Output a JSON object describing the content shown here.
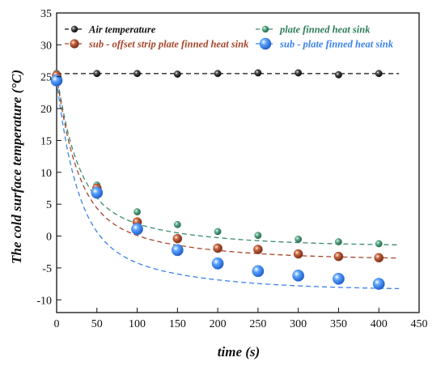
{
  "chart_data": {
    "type": "scatter",
    "xlabel": "time (s)",
    "ylabel": "The cold surface temperature (°C)",
    "xlim": [
      0,
      450
    ],
    "ylim": [
      -12,
      35
    ],
    "x_ticks": [
      0,
      50,
      100,
      150,
      200,
      250,
      300,
      350,
      400,
      450
    ],
    "x_tick_labels": [
      "0",
      "50",
      "100",
      "150",
      "200",
      "250",
      "300",
      "350",
      "400",
      "450"
    ],
    "y_ticks": [
      -10,
      -5,
      0,
      5,
      10,
      15,
      20,
      25,
      30,
      35
    ],
    "y_tick_labels": [
      "-10",
      "-5",
      "0",
      "5",
      "10",
      "15",
      "20",
      "25",
      "30",
      "35"
    ],
    "grid": false,
    "legend_position": "top",
    "series": [
      {
        "name": "Air temperature",
        "color": "#111111",
        "legend_text_color": "#111111",
        "marker_size": "small",
        "x": [
          0,
          50,
          100,
          150,
          200,
          250,
          300,
          350,
          400
        ],
        "y": [
          25.5,
          25.5,
          25.5,
          25.4,
          25.5,
          25.6,
          25.6,
          25.3,
          25.5
        ],
        "fit_line": "flat"
      },
      {
        "name": "plate finned heat sink",
        "color": "#3a8a6e",
        "legend_text_color": "#2e7d5b",
        "marker_size": "small",
        "x": [
          0,
          50,
          100,
          150,
          200,
          250,
          300,
          350,
          400
        ],
        "y": [
          25.5,
          8.0,
          3.8,
          1.8,
          0.7,
          0.1,
          -0.5,
          -0.9,
          -1.2
        ],
        "fit_line": "decay"
      },
      {
        "name": "sub - offset strip plate finned heat sink",
        "color": "#a5452a",
        "legend_text_color": "#a5452a",
        "marker_size": "medium",
        "x": [
          0,
          50,
          100,
          150,
          200,
          250,
          300,
          350,
          400
        ],
        "y": [
          25.2,
          7.5,
          2.2,
          -0.4,
          -1.9,
          -2.1,
          -2.8,
          -3.2,
          -3.4
        ],
        "fit_line": "decay"
      },
      {
        "name": "sub - plate finned heat sink",
        "color": "#3b82e6",
        "legend_text_color": "#3b82e6",
        "marker_size": "large",
        "x": [
          0,
          50,
          100,
          150,
          200,
          250,
          300,
          350,
          400
        ],
        "y": [
          24.4,
          6.8,
          1.1,
          -2.2,
          -4.3,
          -5.5,
          -6.2,
          -6.7,
          -7.5
        ],
        "fit_line": "decay"
      }
    ]
  }
}
